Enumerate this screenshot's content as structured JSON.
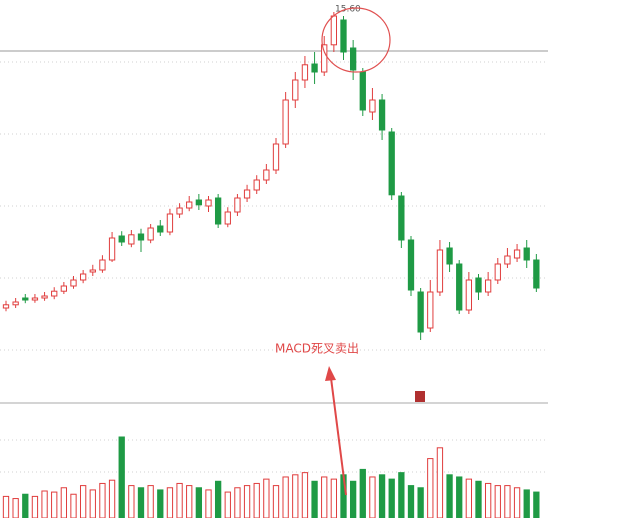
{
  "chart_data": {
    "type": "candlestick",
    "high_label": "15.60",
    "annotation": "MACD死叉卖出",
    "up_color": "#e03c3c",
    "down_color": "#1f9a45",
    "ylim": [
      5.9,
      15.9
    ],
    "volume_lim": [
      0,
      100
    ],
    "open": [
      8.2,
      8.28,
      8.45,
      8.4,
      8.45,
      8.5,
      8.62,
      8.75,
      8.9,
      9.1,
      9.15,
      9.4,
      10.0,
      9.8,
      10.05,
      9.9,
      10.25,
      10.1,
      10.55,
      10.7,
      10.9,
      10.75,
      10.95,
      10.3,
      10.6,
      10.95,
      11.15,
      11.4,
      11.65,
      12.3,
      13.4,
      13.9,
      14.3,
      14.1,
      14.78,
      15.4,
      14.7,
      14.1,
      13.1,
      13.4,
      12.6,
      11.0,
      9.9,
      8.6,
      7.7,
      8.6,
      9.7,
      9.3,
      8.15,
      8.95,
      8.6,
      8.9,
      9.3,
      9.45,
      9.7,
      9.4
    ],
    "high": [
      8.38,
      8.45,
      8.55,
      8.55,
      8.6,
      8.72,
      8.85,
      9.0,
      9.15,
      9.28,
      9.52,
      10.1,
      10.12,
      10.15,
      10.18,
      10.3,
      10.4,
      10.68,
      10.82,
      11.0,
      11.05,
      11.0,
      11.05,
      10.72,
      11.05,
      11.28,
      11.52,
      11.8,
      12.45,
      13.6,
      14.1,
      14.5,
      14.6,
      15.0,
      15.6,
      15.5,
      14.9,
      14.2,
      13.7,
      13.55,
      12.7,
      11.1,
      10.0,
      8.7,
      8.9,
      9.9,
      9.85,
      9.4,
      9.1,
      9.05,
      9.1,
      9.45,
      9.7,
      9.8,
      9.9,
      9.55
    ],
    "low": [
      8.12,
      8.2,
      8.32,
      8.33,
      8.38,
      8.42,
      8.55,
      8.68,
      8.82,
      9.0,
      9.08,
      9.35,
      9.75,
      9.72,
      9.6,
      9.82,
      10.0,
      10.02,
      10.45,
      10.62,
      10.65,
      10.6,
      10.2,
      10.22,
      10.5,
      10.85,
      11.05,
      11.3,
      11.55,
      12.2,
      13.2,
      13.7,
      13.8,
      14.0,
      14.6,
      14.4,
      13.9,
      13.0,
      12.9,
      12.4,
      10.9,
      9.7,
      8.5,
      7.4,
      7.6,
      8.5,
      9.1,
      8.05,
      8.05,
      8.4,
      8.5,
      8.8,
      9.2,
      9.35,
      9.2,
      8.6
    ],
    "close": [
      8.28,
      8.35,
      8.4,
      8.45,
      8.5,
      8.62,
      8.75,
      8.9,
      9.05,
      9.15,
      9.4,
      9.95,
      9.85,
      10.03,
      9.9,
      10.2,
      10.1,
      10.55,
      10.7,
      10.85,
      10.78,
      10.9,
      10.3,
      10.6,
      10.95,
      11.15,
      11.4,
      11.65,
      12.3,
      13.4,
      13.9,
      14.28,
      14.1,
      14.78,
      15.5,
      14.6,
      14.15,
      13.15,
      13.4,
      12.65,
      11.03,
      9.9,
      8.65,
      7.6,
      8.6,
      9.65,
      9.3,
      8.15,
      8.9,
      8.6,
      8.9,
      9.3,
      9.5,
      9.65,
      9.4,
      8.7
    ],
    "volume": [
      20,
      18,
      22,
      20,
      25,
      24,
      28,
      22,
      30,
      26,
      32,
      35,
      75,
      30,
      28,
      30,
      26,
      28,
      32,
      30,
      28,
      26,
      34,
      24,
      28,
      30,
      32,
      36,
      30,
      38,
      40,
      42,
      34,
      38,
      36,
      40,
      34,
      45,
      38,
      40,
      36,
      42,
      30,
      28,
      55,
      65,
      40,
      38,
      36,
      34,
      32,
      30,
      30,
      28,
      26,
      24
    ]
  }
}
